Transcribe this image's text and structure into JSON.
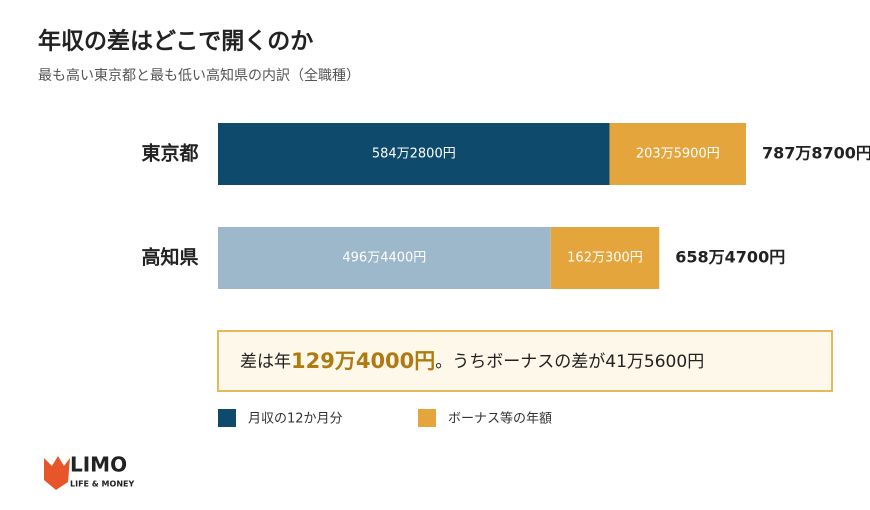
{
  "chart_data": {
    "type": "stacked-bar-horizontal",
    "title": "年収の差はどこで開くのか",
    "subtitle": "最も高い東京都と最も低い高知県の内訳（全職種）",
    "categories": [
      "東京都",
      "高知県"
    ],
    "series": [
      {
        "name": "月収の12か月分",
        "colors": [
          "#0d4a6b",
          "#9db8ca"
        ],
        "values": [
          5842800,
          4964400
        ],
        "value_labels": [
          "584万2800円",
          "496万4400円"
        ]
      },
      {
        "name": "ボーナス等の年額",
        "colors": [
          "#e5a53d",
          "#e5a53d"
        ],
        "values": [
          2035900,
          1620300
        ],
        "value_labels": [
          "203万5900円",
          "162万300円"
        ]
      }
    ],
    "totals": [
      7878700,
      6584700
    ],
    "total_labels": [
      "787万8700円",
      "658万4700円"
    ],
    "callout": {
      "prefix": "差は年",
      "highlight": "129万4000円",
      "suffix": "。うちボーナスの差が41万5600円"
    },
    "legend_colors": [
      "#0d4a6b",
      "#e5a53d"
    ]
  },
  "logo": {
    "name": "LIMO",
    "tagline": "LIFE & MONEY"
  }
}
